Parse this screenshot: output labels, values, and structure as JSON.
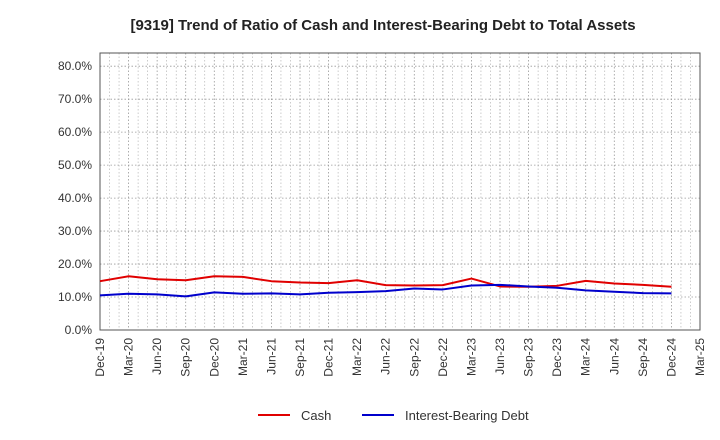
{
  "chart_data": {
    "type": "line",
    "title": "[9319]  Trend of Ratio of Cash and Interest-Bearing Debt to Total Assets",
    "xlabel": "",
    "ylabel": "",
    "y_ticks": [
      "0.0%",
      "10.0%",
      "20.0%",
      "30.0%",
      "40.0%",
      "50.0%",
      "60.0%",
      "70.0%",
      "80.0%"
    ],
    "ylim": [
      0,
      84
    ],
    "x": [
      "Dec-19",
      "Mar-20",
      "Jun-20",
      "Sep-20",
      "Dec-20",
      "Mar-21",
      "Jun-21",
      "Sep-21",
      "Dec-21",
      "Mar-22",
      "Jun-22",
      "Sep-22",
      "Dec-22",
      "Mar-23",
      "Jun-23",
      "Sep-23",
      "Dec-23",
      "Mar-24",
      "Jun-24",
      "Sep-24",
      "Dec-24",
      "Mar-25"
    ],
    "grid": true,
    "legend_position": "bottom",
    "series": [
      {
        "name": "Cash",
        "color": "#e00000",
        "values": [
          14.8,
          16.3,
          15.4,
          15.1,
          16.3,
          16.1,
          14.8,
          14.4,
          14.2,
          15.1,
          13.6,
          13.5,
          13.6,
          15.6,
          13.2,
          13.1,
          13.4,
          14.9,
          14.1,
          13.7,
          13.1,
          null
        ]
      },
      {
        "name": "Interest-Bearing Debt",
        "color": "#0000cc",
        "values": [
          10.5,
          11.0,
          10.8,
          10.2,
          11.4,
          11.0,
          11.1,
          10.8,
          11.3,
          11.5,
          11.8,
          12.6,
          12.3,
          13.5,
          13.7,
          13.2,
          12.8,
          12.0,
          11.6,
          11.2,
          11.1,
          null
        ]
      }
    ]
  }
}
